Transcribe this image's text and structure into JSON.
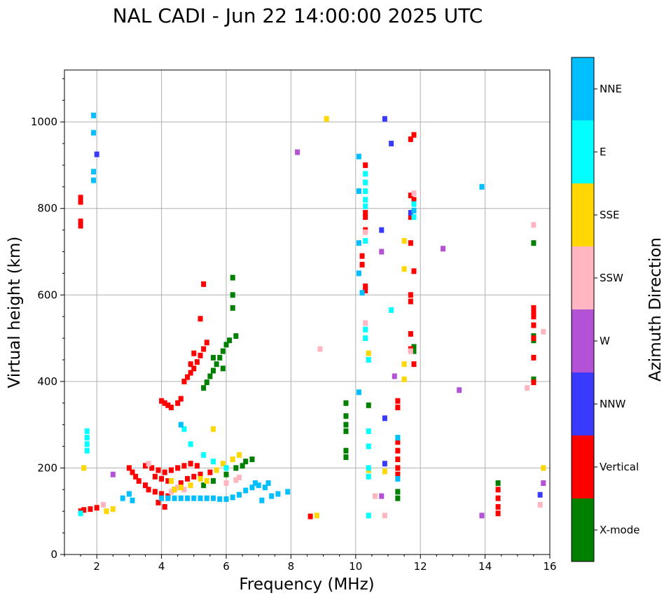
{
  "chart_data": {
    "type": "scatter",
    "title": "NAL CADI - Jun 22 14:00:00 2025 UTC",
    "xlabel": "Frequency (MHz)",
    "ylabel": "Virtual height (km)",
    "xlim": [
      1,
      16
    ],
    "ylim": [
      0,
      1120
    ],
    "xticks": [
      2,
      4,
      6,
      8,
      10,
      12,
      14,
      16
    ],
    "yticks": [
      0,
      200,
      400,
      600,
      800,
      1000
    ],
    "grid": true,
    "colorbar": {
      "label": "Azimuth Direction",
      "categories": [
        "X-mode",
        "Vertical",
        "NNW",
        "W",
        "SSW",
        "SSE",
        "E",
        "NNE"
      ],
      "colors": [
        "#008000",
        "#ff0000",
        "#3a3aff",
        "#b452d6",
        "#ffb6c1",
        "#ffd700",
        "#00ffff",
        "#00bfff"
      ]
    },
    "series": [
      {
        "name": "X-mode",
        "points": [
          [
            14.4,
            165
          ],
          [
            9.7,
            350
          ],
          [
            9.7,
            320
          ],
          [
            9.7,
            300
          ],
          [
            9.7,
            285
          ],
          [
            9.7,
            240
          ],
          [
            9.7,
            225
          ],
          [
            10.4,
            345
          ],
          [
            11.3,
            145
          ],
          [
            11.3,
            130
          ],
          [
            11.8,
            480
          ],
          [
            11.8,
            470
          ],
          [
            15.5,
            720
          ],
          [
            15.5,
            505
          ],
          [
            15.5,
            495
          ],
          [
            15.5,
            405
          ],
          [
            6.2,
            600
          ],
          [
            6.2,
            570
          ],
          [
            6.2,
            640
          ],
          [
            6.3,
            505
          ],
          [
            6.1,
            495
          ],
          [
            6.0,
            485
          ],
          [
            5.9,
            470
          ],
          [
            5.8,
            455
          ],
          [
            5.7,
            440
          ],
          [
            5.6,
            425
          ],
          [
            5.5,
            412
          ],
          [
            5.4,
            398
          ],
          [
            5.3,
            385
          ],
          [
            5.6,
            455
          ],
          [
            5.9,
            430
          ],
          [
            6.6,
            215
          ],
          [
            6.5,
            205
          ],
          [
            6.3,
            200
          ],
          [
            6.0,
            185
          ],
          [
            5.6,
            170
          ],
          [
            5.3,
            160
          ],
          [
            6.8,
            220
          ]
        ]
      },
      {
        "name": "Vertical",
        "points": [
          [
            1.5,
            825
          ],
          [
            1.5,
            815
          ],
          [
            1.5,
            770
          ],
          [
            1.5,
            760
          ],
          [
            14.4,
            150
          ],
          [
            14.4,
            130
          ],
          [
            14.4,
            110
          ],
          [
            14.4,
            95
          ],
          [
            15.5,
            570
          ],
          [
            15.5,
            560
          ],
          [
            15.5,
            550
          ],
          [
            15.5,
            530
          ],
          [
            15.5,
            500
          ],
          [
            15.5,
            455
          ],
          [
            15.5,
            398
          ],
          [
            10.3,
            900
          ],
          [
            10.3,
            790
          ],
          [
            10.3,
            780
          ],
          [
            10.3,
            750
          ],
          [
            10.2,
            690
          ],
          [
            10.2,
            670
          ],
          [
            10.3,
            620
          ],
          [
            10.3,
            610
          ],
          [
            11.8,
            970
          ],
          [
            11.7,
            960
          ],
          [
            11.7,
            830
          ],
          [
            11.8,
            820
          ],
          [
            11.7,
            780
          ],
          [
            11.7,
            720
          ],
          [
            11.8,
            655
          ],
          [
            11.7,
            600
          ],
          [
            11.7,
            585
          ],
          [
            11.7,
            510
          ],
          [
            11.7,
            475
          ],
          [
            11.8,
            440
          ],
          [
            11.3,
            355
          ],
          [
            11.3,
            340
          ],
          [
            11.3,
            260
          ],
          [
            11.3,
            240
          ],
          [
            11.3,
            220
          ],
          [
            11.3,
            200
          ],
          [
            11.3,
            185
          ],
          [
            4.0,
            355
          ],
          [
            4.1,
            350
          ],
          [
            4.2,
            345
          ],
          [
            4.3,
            340
          ],
          [
            4.5,
            350
          ],
          [
            4.6,
            360
          ],
          [
            4.7,
            400
          ],
          [
            4.8,
            410
          ],
          [
            4.9,
            420
          ],
          [
            5.0,
            430
          ],
          [
            5.1,
            445
          ],
          [
            5.2,
            460
          ],
          [
            5.3,
            475
          ],
          [
            5.4,
            490
          ],
          [
            4.9,
            440
          ],
          [
            5.0,
            465
          ],
          [
            5.3,
            625
          ],
          [
            5.2,
            545
          ],
          [
            3.0,
            200
          ],
          [
            3.1,
            190
          ],
          [
            3.2,
            180
          ],
          [
            3.3,
            170
          ],
          [
            3.5,
            160
          ],
          [
            3.6,
            150
          ],
          [
            3.8,
            145
          ],
          [
            4.0,
            140
          ],
          [
            4.2,
            135
          ],
          [
            4.4,
            150
          ],
          [
            4.6,
            165
          ],
          [
            4.8,
            175
          ],
          [
            5.0,
            180
          ],
          [
            5.2,
            185
          ],
          [
            5.5,
            190
          ],
          [
            3.5,
            205
          ],
          [
            3.7,
            200
          ],
          [
            3.9,
            195
          ],
          [
            4.1,
            190
          ],
          [
            4.3,
            195
          ],
          [
            4.5,
            200
          ],
          [
            4.7,
            205
          ],
          [
            4.9,
            210
          ],
          [
            5.1,
            205
          ],
          [
            3.8,
            180
          ],
          [
            4.0,
            175
          ],
          [
            4.2,
            170
          ],
          [
            3.9,
            120
          ],
          [
            4.1,
            110
          ],
          [
            2.0,
            108
          ],
          [
            1.8,
            105
          ],
          [
            1.6,
            103
          ],
          [
            1.5,
            100
          ],
          [
            8.6,
            88
          ]
        ]
      },
      {
        "name": "NNW",
        "points": [
          [
            10.9,
            1007
          ],
          [
            10.8,
            750
          ],
          [
            10.9,
            315
          ],
          [
            10.9,
            210
          ],
          [
            15.7,
            138
          ],
          [
            2.0,
            925
          ],
          [
            11.7,
            790
          ],
          [
            11.1,
            950
          ]
        ]
      },
      {
        "name": "W",
        "points": [
          [
            8.2,
            930
          ],
          [
            10.8,
            700
          ],
          [
            12.7,
            707
          ],
          [
            13.2,
            380
          ],
          [
            13.9,
            90
          ],
          [
            15.8,
            165
          ],
          [
            11.2,
            412
          ],
          [
            10.8,
            135
          ],
          [
            2.5,
            185
          ]
        ]
      },
      {
        "name": "SSW",
        "points": [
          [
            15.5,
            762
          ],
          [
            15.8,
            515
          ],
          [
            15.3,
            385
          ],
          [
            15.7,
            115
          ],
          [
            8.9,
            475
          ],
          [
            10.3,
            860
          ],
          [
            10.3,
            745
          ],
          [
            10.3,
            535
          ],
          [
            11.8,
            835
          ],
          [
            11.7,
            470
          ],
          [
            10.6,
            135
          ],
          [
            4.3,
            145
          ],
          [
            4.5,
            155
          ],
          [
            4.7,
            150
          ],
          [
            6.0,
            165
          ],
          [
            6.3,
            172
          ],
          [
            6.4,
            178
          ],
          [
            3.6,
            210
          ],
          [
            2.2,
            115
          ],
          [
            10.9,
            90
          ]
        ]
      },
      {
        "name": "SSE",
        "points": [
          [
            9.1,
            1007
          ],
          [
            15.8,
            200
          ],
          [
            11.5,
            660
          ],
          [
            11.5,
            440
          ],
          [
            11.5,
            405
          ],
          [
            10.4,
            465
          ],
          [
            10.4,
            195
          ],
          [
            10.9,
            192
          ],
          [
            11.5,
            725
          ],
          [
            6.4,
            230
          ],
          [
            6.2,
            220
          ],
          [
            5.9,
            210
          ],
          [
            5.7,
            195
          ],
          [
            5.4,
            170
          ],
          [
            5.2,
            175
          ],
          [
            4.9,
            160
          ],
          [
            4.6,
            155
          ],
          [
            4.4,
            150
          ],
          [
            4.3,
            170
          ],
          [
            5.6,
            290
          ],
          [
            2.3,
            100
          ],
          [
            2.5,
            105
          ],
          [
            1.6,
            200
          ],
          [
            8.8,
            90
          ]
        ]
      },
      {
        "name": "E",
        "points": [
          [
            10.3,
            880
          ],
          [
            10.3,
            860
          ],
          [
            10.3,
            840
          ],
          [
            10.3,
            820
          ],
          [
            10.3,
            805
          ],
          [
            10.3,
            725
          ],
          [
            10.3,
            520
          ],
          [
            10.3,
            500
          ],
          [
            10.4,
            450
          ],
          [
            10.4,
            285
          ],
          [
            10.4,
            250
          ],
          [
            10.4,
            200
          ],
          [
            10.4,
            180
          ],
          [
            11.1,
            565
          ],
          [
            11.8,
            780
          ],
          [
            11.8,
            810
          ],
          [
            1.7,
            285
          ],
          [
            1.7,
            270
          ],
          [
            1.7,
            255
          ],
          [
            1.7,
            240
          ],
          [
            1.5,
            95
          ],
          [
            4.7,
            290
          ],
          [
            4.9,
            255
          ],
          [
            5.3,
            230
          ],
          [
            5.6,
            215
          ],
          [
            6.0,
            200
          ],
          [
            10.4,
            90
          ]
        ]
      },
      {
        "name": "NNE",
        "points": [
          [
            1.9,
            1015
          ],
          [
            1.9,
            975
          ],
          [
            1.9,
            885
          ],
          [
            1.9,
            865
          ],
          [
            10.1,
            920
          ],
          [
            10.1,
            840
          ],
          [
            10.1,
            720
          ],
          [
            10.1,
            650
          ],
          [
            10.2,
            605
          ],
          [
            11.3,
            270
          ],
          [
            11.3,
            175
          ],
          [
            11.8,
            795
          ],
          [
            13.9,
            850
          ],
          [
            5.0,
            130
          ],
          [
            5.2,
            130
          ],
          [
            5.4,
            130
          ],
          [
            5.6,
            130
          ],
          [
            5.8,
            128
          ],
          [
            6.0,
            128
          ],
          [
            6.2,
            132
          ],
          [
            6.4,
            138
          ],
          [
            6.6,
            148
          ],
          [
            6.8,
            155
          ],
          [
            7.0,
            160
          ],
          [
            7.2,
            155
          ],
          [
            7.4,
            135
          ],
          [
            7.6,
            140
          ],
          [
            7.9,
            145
          ],
          [
            4.0,
            130
          ],
          [
            4.2,
            130
          ],
          [
            4.4,
            130
          ],
          [
            4.6,
            130
          ],
          [
            4.8,
            130
          ],
          [
            7.1,
            125
          ],
          [
            6.9,
            165
          ],
          [
            7.3,
            165
          ],
          [
            3.0,
            140
          ],
          [
            3.1,
            125
          ],
          [
            4.6,
            300
          ],
          [
            10.1,
            375
          ],
          [
            2.8,
            130
          ]
        ]
      }
    ]
  }
}
